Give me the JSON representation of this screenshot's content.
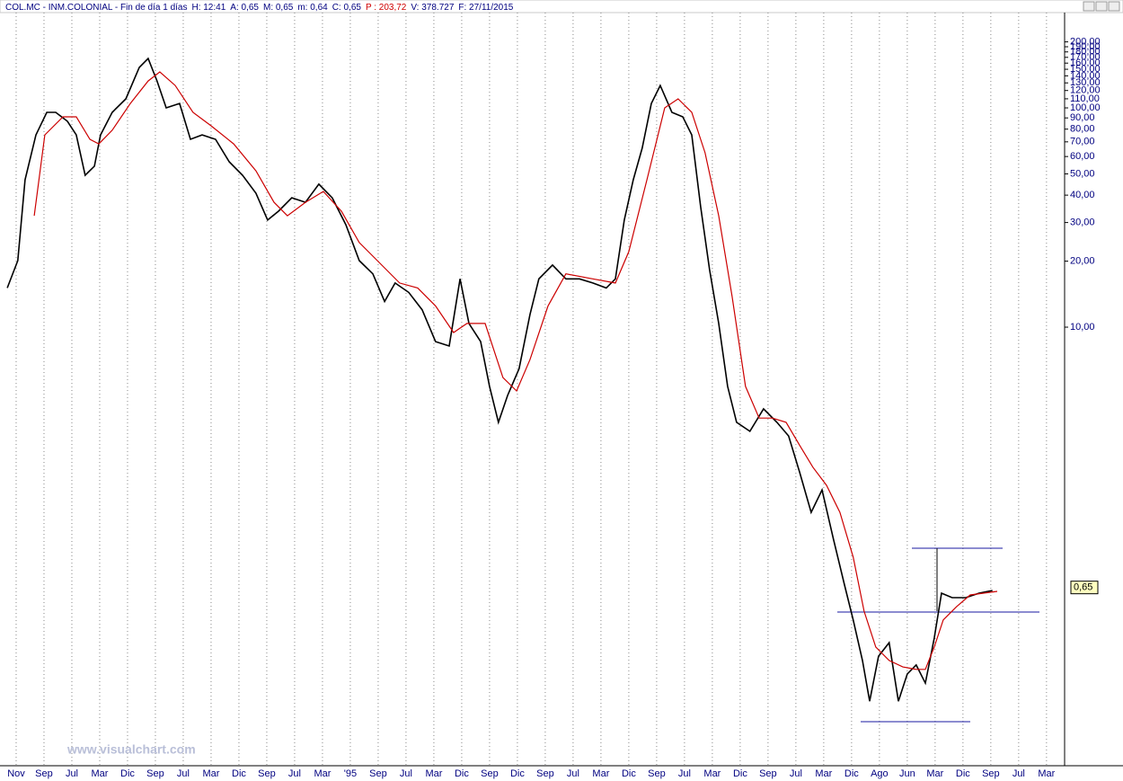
{
  "header": [
    "COL.MC - INM.COLONIAL - Fin de día 1 días",
    "H: 12:41",
    "A: 0,65",
    "M: 0,65",
    "m: 0,64",
    "C: 0,65",
    "P : 203,72",
    "V: 378.727",
    "F: 27/11/2015"
  ],
  "watermark": "www.visualchart.com",
  "chart_data": {
    "type": "line",
    "log_scale": true,
    "x_grid": true,
    "categories": [
      "Nov",
      "Sep",
      "Jul",
      "Mar",
      "Dic",
      "Sep",
      "Jul",
      "Mar",
      "Dic",
      "Sep",
      "Jul",
      "Mar",
      "'95",
      "Sep",
      "Jul",
      "Mar",
      "Dic",
      "Sep",
      "Dic",
      "Sep",
      "Jul",
      "Mar",
      "Dic",
      "Sep",
      "Jul",
      "Mar",
      "Dic",
      "Sep",
      "Jul",
      "Mar",
      "Dic",
      "Ago",
      "Jun",
      "Mar",
      "Dic",
      "Sep",
      "Jul",
      "Mar"
    ],
    "xlim": [
      -0.58,
      37.65
    ],
    "ylim": [
      0.1,
      272
    ],
    "yticks": [
      {
        "value": 10,
        "label": "10,00"
      },
      {
        "value": 20,
        "label": "20,00"
      },
      {
        "value": 30,
        "label": "30,00"
      },
      {
        "value": 40,
        "label": "40,00"
      },
      {
        "value": 50,
        "label": "50,00"
      },
      {
        "value": 60,
        "label": "60,00"
      },
      {
        "value": 70,
        "label": "70,00"
      },
      {
        "value": 80,
        "label": "80,00"
      },
      {
        "value": 90,
        "label": "90,00"
      },
      {
        "value": 100,
        "label": "100,00"
      },
      {
        "value": 110,
        "label": "110,00"
      },
      {
        "value": 120,
        "label": "120,00"
      },
      {
        "value": 130,
        "label": "130,00"
      },
      {
        "value": 140,
        "label": "140,00"
      },
      {
        "value": 150,
        "label": "150,00"
      },
      {
        "value": 160,
        "label": "160,00"
      },
      {
        "value": 170,
        "label": "170,00"
      },
      {
        "value": 180,
        "label": "180,00"
      },
      {
        "value": 190,
        "label": "190,00"
      },
      {
        "value": 200,
        "label": "200,00"
      }
    ],
    "last_price": {
      "value": 0.65,
      "label": "0,65"
    },
    "series": [
      {
        "color": "#000000",
        "x": [
          -0.32,
          0.06,
          0.32,
          0.71,
          1.1,
          1.42,
          1.84,
          2.16,
          2.48,
          2.81,
          3.03,
          3.45,
          3.94,
          4.42,
          4.74,
          5.06,
          5.39,
          5.87,
          6.26,
          6.68,
          7.16,
          7.65,
          8.13,
          8.61,
          9.03,
          9.42,
          9.9,
          10.39,
          10.87,
          11.35,
          11.84,
          12.32,
          12.81,
          13.23,
          13.61,
          14.1,
          14.58,
          15.06,
          15.55,
          15.94,
          16.26,
          16.68,
          17.0,
          17.32,
          17.65,
          18.06,
          18.45,
          18.77,
          19.26,
          19.74,
          20.23,
          20.71,
          21.19,
          21.52,
          21.84,
          22.16,
          22.48,
          22.81,
          23.13,
          23.55,
          23.94,
          24.26,
          24.58,
          24.9,
          25.23,
          25.55,
          25.87,
          26.35,
          26.84,
          27.32,
          27.74,
          28.13,
          28.55,
          28.94,
          29.35,
          29.74,
          30.06,
          30.39,
          30.65,
          30.97,
          31.35,
          31.68,
          32.0,
          32.32,
          32.65,
          32.97,
          33.23,
          33.61,
          34.1,
          34.58,
          35.06
        ],
        "values": [
          15.1,
          20.1,
          47.0,
          75.3,
          95.4,
          95.4,
          86.9,
          75.3,
          49.3,
          54.2,
          75.3,
          95.4,
          109.9,
          152.8,
          167.9,
          132.7,
          100,
          104.8,
          71.9,
          75.3,
          71.9,
          56.8,
          49.3,
          40.8,
          30.8,
          33.8,
          38.9,
          37.1,
          44.9,
          38.9,
          29.3,
          20.1,
          17.5,
          13.1,
          15.9,
          14.4,
          12.0,
          8.59,
          8.2,
          16.6,
          10.4,
          8.59,
          5.37,
          3.68,
          4.89,
          6.47,
          11.4,
          16.6,
          19.2,
          16.6,
          16.6,
          15.9,
          15.1,
          16.6,
          30.8,
          47.0,
          65.5,
          104.8,
          126.5,
          95.4,
          91.0,
          75.3,
          35.4,
          18.3,
          10.4,
          5.37,
          3.68,
          3.35,
          4.24,
          3.68,
          3.19,
          2.19,
          1.43,
          1.81,
          1.08,
          0.673,
          0.462,
          0.302,
          0.197,
          0.316,
          0.364,
          0.197,
          0.262,
          0.288,
          0.238,
          0.382,
          0.612,
          0.584,
          0.584,
          0.612,
          0.63
        ]
      },
      {
        "color": "#cc0000",
        "x": [
          0.65,
          1.03,
          1.68,
          2.16,
          2.65,
          2.97,
          3.45,
          4.1,
          4.74,
          5.16,
          5.71,
          6.35,
          7.0,
          7.81,
          8.61,
          9.26,
          9.74,
          10.39,
          11.03,
          11.68,
          12.32,
          12.97,
          13.77,
          14.42,
          15.06,
          15.71,
          16.19,
          16.84,
          17.48,
          17.97,
          18.45,
          19.1,
          19.74,
          20.71,
          21.52,
          22.0,
          22.65,
          23.29,
          23.77,
          24.26,
          24.74,
          25.23,
          25.71,
          26.19,
          26.68,
          27.16,
          27.65,
          28.13,
          28.61,
          29.1,
          29.58,
          30.06,
          30.45,
          30.87,
          31.35,
          31.84,
          32.32,
          32.65,
          32.97,
          33.29,
          33.77,
          34.26,
          34.74,
          35.23
        ],
        "values": [
          32.2,
          75.3,
          91.0,
          91.0,
          71.9,
          68.5,
          79.1,
          104.8,
          132.7,
          145.9,
          126.5,
          95.4,
          82.8,
          68.5,
          51.6,
          37.1,
          32.2,
          37.1,
          41.6,
          33.8,
          24.3,
          20.1,
          15.9,
          15.1,
          12.5,
          9.45,
          10.4,
          10.4,
          5.89,
          5.12,
          7.11,
          12.5,
          17.5,
          16.6,
          15.9,
          22.1,
          47.0,
          100,
          109.9,
          95.4,
          62.4,
          32.2,
          13.8,
          5.37,
          3.85,
          3.85,
          3.68,
          2.9,
          2.3,
          1.9,
          1.43,
          0.894,
          0.507,
          0.348,
          0.302,
          0.282,
          0.275,
          0.275,
          0.348,
          0.462,
          0.531,
          0.601,
          0.612,
          0.624
        ]
      }
    ]
  }
}
